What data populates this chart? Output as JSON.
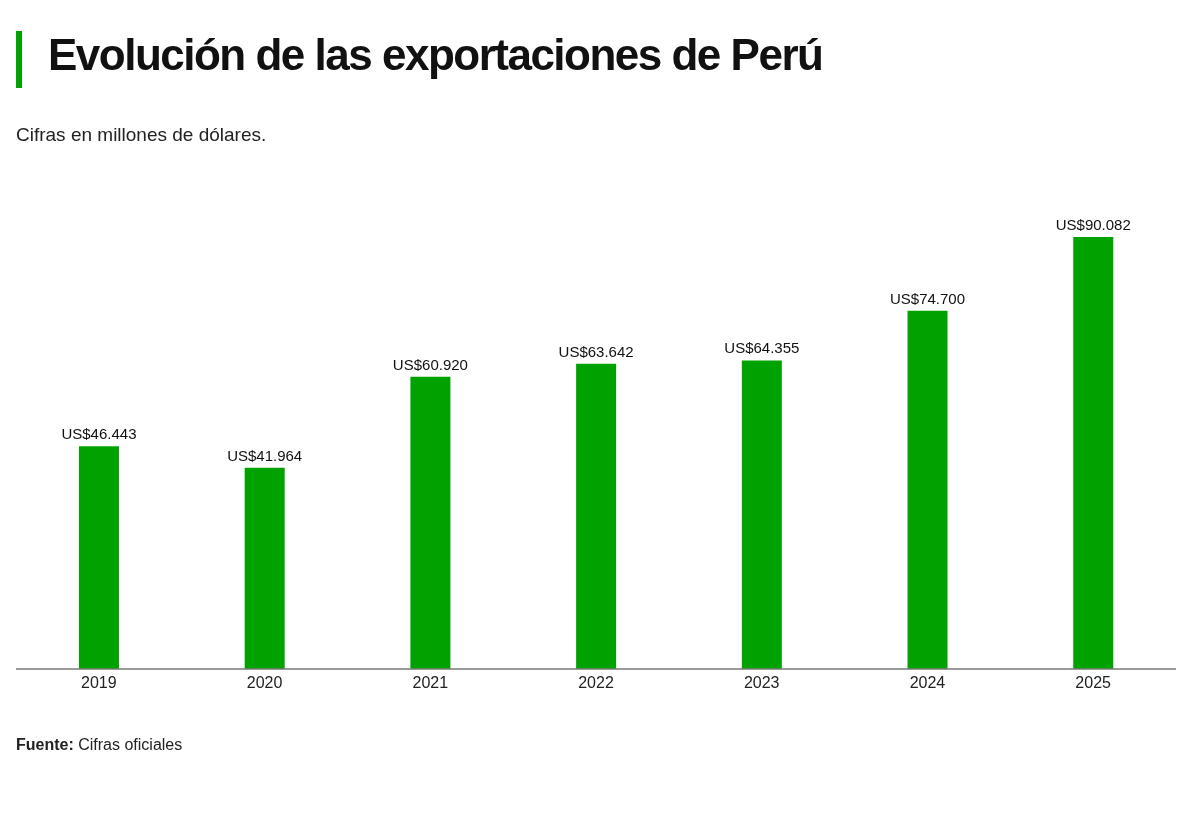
{
  "chart_data": {
    "type": "bar",
    "title": "Evolución de las exportaciones de Perú",
    "subtitle": "Cifras en millones de dólares.",
    "categories": [
      "2019",
      "2020",
      "2021",
      "2022",
      "2023",
      "2024",
      "2025"
    ],
    "values": [
      46443,
      41964,
      60920,
      63642,
      64355,
      74700,
      90082
    ],
    "value_labels": [
      "US$46.443",
      "US$41.964",
      "US$60.920",
      "US$63.642",
      "US$64.355",
      "US$74.700",
      "US$90.082"
    ],
    "color": "#00a200",
    "grid": false,
    "legend": false,
    "annotations": [
      "Fuente: Cifras oficiales"
    ]
  }
}
